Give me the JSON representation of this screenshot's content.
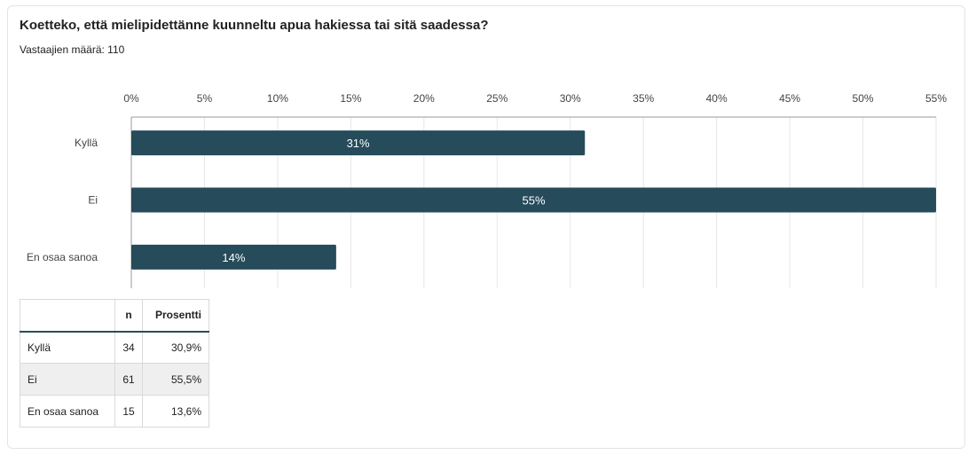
{
  "question": "Koetteko, että mielipidettänne kuunneltu apua hakiessa tai sitä saadessa?",
  "respondents_text": "Vastaajien määrä: 110",
  "colors": {
    "bar": "#264b5a",
    "grid": "#e6e6e6",
    "axis": "#999999"
  },
  "chart_data": {
    "type": "bar",
    "orientation": "horizontal",
    "categories": [
      "Kyllä",
      "Ei",
      "En osaa sanoa"
    ],
    "values": [
      31,
      55,
      14
    ],
    "value_labels": [
      "31%",
      "55%",
      "14%"
    ],
    "xlim": [
      0,
      55
    ],
    "xticks": [
      0,
      5,
      10,
      15,
      20,
      25,
      30,
      35,
      40,
      45,
      50,
      55
    ],
    "xtick_labels": [
      "0%",
      "5%",
      "10%",
      "15%",
      "20%",
      "25%",
      "30%",
      "35%",
      "40%",
      "45%",
      "50%",
      "55%"
    ],
    "x_axis_position": "top",
    "grid": true,
    "legend": "none"
  },
  "table": {
    "headers": [
      "",
      "n",
      "Prosentti"
    ],
    "rows": [
      {
        "label": "Kyllä",
        "n": "34",
        "pct": "30,9%"
      },
      {
        "label": "Ei",
        "n": "61",
        "pct": "55,5%"
      },
      {
        "label": "En osaa sanoa",
        "n": "15",
        "pct": "13,6%"
      }
    ]
  }
}
